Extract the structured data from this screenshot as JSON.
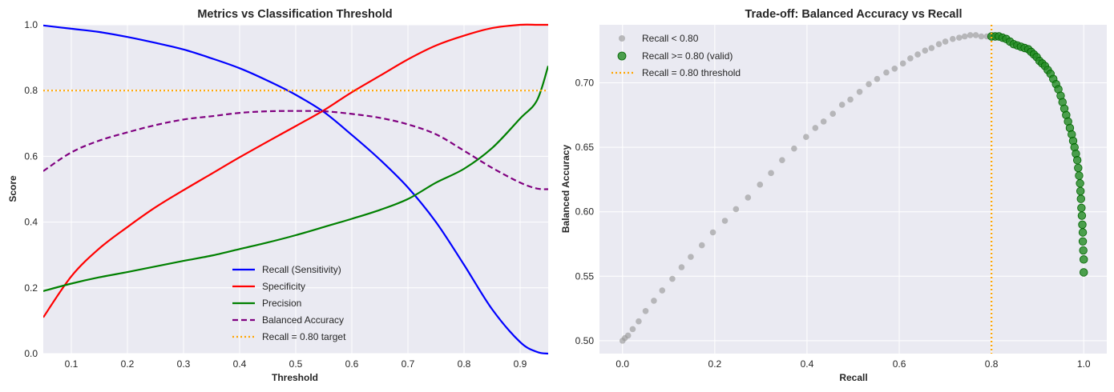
{
  "colors": {
    "recall": "#0000ff",
    "specificity": "#ff0000",
    "precision": "#008000",
    "balanced_accuracy": "#800080",
    "target": "#ffa500",
    "gray_points": "#999999",
    "green_points": "#228b22",
    "plot_background": "#eaeaf2",
    "grid": "#ffffff"
  },
  "chart_data": [
    {
      "type": "line",
      "title": "Metrics vs Classification Threshold",
      "xlabel": "Threshold",
      "ylabel": "Score",
      "xlim": [
        0.05,
        0.95
      ],
      "ylim": [
        0.0,
        1.0
      ],
      "xticks": [
        "0.1",
        "0.2",
        "0.3",
        "0.4",
        "0.5",
        "0.6",
        "0.7",
        "0.8",
        "0.9"
      ],
      "yticks": [
        "0.0",
        "0.2",
        "0.4",
        "0.6",
        "0.8",
        "1.0"
      ],
      "grid": true,
      "legend": "lower center",
      "x": [
        0.05,
        0.1,
        0.15,
        0.2,
        0.25,
        0.3,
        0.35,
        0.4,
        0.45,
        0.5,
        0.55,
        0.6,
        0.65,
        0.7,
        0.75,
        0.8,
        0.85,
        0.9,
        0.93,
        0.95
      ],
      "series": [
        {
          "name": "Recall (Sensitivity)",
          "style": "solid",
          "values": [
            0.998,
            0.988,
            0.978,
            0.963,
            0.945,
            0.925,
            0.898,
            0.868,
            0.83,
            0.787,
            0.735,
            0.665,
            0.59,
            0.505,
            0.4,
            0.27,
            0.135,
            0.035,
            0.005,
            0.0
          ]
        },
        {
          "name": "Specificity",
          "style": "solid",
          "values": [
            0.11,
            0.235,
            0.32,
            0.385,
            0.445,
            0.497,
            0.547,
            0.597,
            0.645,
            0.692,
            0.74,
            0.795,
            0.845,
            0.895,
            0.937,
            0.967,
            0.99,
            1.0,
            1.0,
            1.0
          ]
        },
        {
          "name": "Precision",
          "style": "solid",
          "values": [
            0.19,
            0.213,
            0.232,
            0.248,
            0.265,
            0.282,
            0.298,
            0.318,
            0.338,
            0.36,
            0.385,
            0.41,
            0.437,
            0.47,
            0.52,
            0.562,
            0.625,
            0.715,
            0.77,
            0.875
          ]
        },
        {
          "name": "Balanced Accuracy",
          "style": "dashed",
          "values": [
            0.555,
            0.612,
            0.648,
            0.673,
            0.695,
            0.712,
            0.722,
            0.732,
            0.737,
            0.738,
            0.737,
            0.729,
            0.717,
            0.697,
            0.667,
            0.617,
            0.565,
            0.52,
            0.502,
            0.5
          ]
        },
        {
          "name": "Recall = 0.80 target",
          "style": "dotted",
          "values": [
            0.8,
            0.8,
            0.8,
            0.8,
            0.8,
            0.8,
            0.8,
            0.8,
            0.8,
            0.8,
            0.8,
            0.8,
            0.8,
            0.8,
            0.8,
            0.8,
            0.8,
            0.8,
            0.8,
            0.8
          ]
        }
      ]
    },
    {
      "type": "scatter",
      "title": "Trade-off: Balanced Accuracy vs Recall",
      "xlabel": "Recall",
      "ylabel": "Balanced Accuracy",
      "xlim": [
        -0.05,
        1.05
      ],
      "ylim": [
        0.49,
        0.745
      ],
      "xticks": [
        "0.0",
        "0.2",
        "0.4",
        "0.6",
        "0.8",
        "1.0"
      ],
      "yticks": [
        "0.50",
        "0.55",
        "0.60",
        "0.65",
        "0.70"
      ],
      "grid": true,
      "legend": "upper left",
      "series": [
        {
          "name": "Recall < 0.80",
          "points": [
            [
              0.0,
              0.5
            ],
            [
              0.005,
              0.502
            ],
            [
              0.012,
              0.504
            ],
            [
              0.022,
              0.509
            ],
            [
              0.035,
              0.515
            ],
            [
              0.05,
              0.523
            ],
            [
              0.068,
              0.531
            ],
            [
              0.086,
              0.539
            ],
            [
              0.108,
              0.548
            ],
            [
              0.128,
              0.557
            ],
            [
              0.148,
              0.565
            ],
            [
              0.172,
              0.574
            ],
            [
              0.196,
              0.584
            ],
            [
              0.222,
              0.593
            ],
            [
              0.246,
              0.602
            ],
            [
              0.272,
              0.611
            ],
            [
              0.298,
              0.621
            ],
            [
              0.322,
              0.63
            ],
            [
              0.346,
              0.64
            ],
            [
              0.372,
              0.649
            ],
            [
              0.398,
              0.658
            ],
            [
              0.418,
              0.665
            ],
            [
              0.436,
              0.67
            ],
            [
              0.456,
              0.676
            ],
            [
              0.476,
              0.683
            ],
            [
              0.494,
              0.687
            ],
            [
              0.514,
              0.693
            ],
            [
              0.534,
              0.699
            ],
            [
              0.552,
              0.703
            ],
            [
              0.572,
              0.708
            ],
            [
              0.59,
              0.711
            ],
            [
              0.608,
              0.715
            ],
            [
              0.624,
              0.719
            ],
            [
              0.64,
              0.722
            ],
            [
              0.656,
              0.725
            ],
            [
              0.67,
              0.727
            ],
            [
              0.686,
              0.73
            ],
            [
              0.7,
              0.732
            ],
            [
              0.716,
              0.734
            ],
            [
              0.73,
              0.735
            ],
            [
              0.742,
              0.736
            ],
            [
              0.754,
              0.737
            ],
            [
              0.766,
              0.737
            ],
            [
              0.778,
              0.736
            ],
            [
              0.79,
              0.736
            ],
            [
              0.797,
              0.736
            ]
          ]
        },
        {
          "name": "Recall >= 0.80 (valid)",
          "points": [
            [
              0.8,
              0.736
            ],
            [
              0.808,
              0.736
            ],
            [
              0.816,
              0.736
            ],
            [
              0.824,
              0.735
            ],
            [
              0.832,
              0.734
            ],
            [
              0.84,
              0.732
            ],
            [
              0.848,
              0.73
            ],
            [
              0.856,
              0.729
            ],
            [
              0.864,
              0.728
            ],
            [
              0.872,
              0.727
            ],
            [
              0.88,
              0.726
            ],
            [
              0.886,
              0.724
            ],
            [
              0.892,
              0.722
            ],
            [
              0.898,
              0.72
            ],
            [
              0.904,
              0.717
            ],
            [
              0.91,
              0.715
            ],
            [
              0.916,
              0.713
            ],
            [
              0.922,
              0.71
            ],
            [
              0.928,
              0.707
            ],
            [
              0.934,
              0.703
            ],
            [
              0.94,
              0.699
            ],
            [
              0.945,
              0.695
            ],
            [
              0.95,
              0.69
            ],
            [
              0.954,
              0.685
            ],
            [
              0.958,
              0.68
            ],
            [
              0.962,
              0.675
            ],
            [
              0.966,
              0.67
            ],
            [
              0.97,
              0.665
            ],
            [
              0.974,
              0.66
            ],
            [
              0.977,
              0.655
            ],
            [
              0.98,
              0.65
            ],
            [
              0.983,
              0.645
            ],
            [
              0.986,
              0.64
            ],
            [
              0.988,
              0.634
            ],
            [
              0.99,
              0.628
            ],
            [
              0.992,
              0.622
            ],
            [
              0.993,
              0.616
            ],
            [
              0.994,
              0.61
            ],
            [
              0.995,
              0.603
            ],
            [
              0.996,
              0.597
            ],
            [
              0.997,
              0.59
            ],
            [
              0.998,
              0.584
            ],
            [
              0.998,
              0.577
            ],
            [
              0.999,
              0.57
            ],
            [
              1.0,
              0.563
            ],
            [
              1.0,
              0.553
            ]
          ]
        },
        {
          "name": "Recall = 0.80 threshold",
          "style": "dotted-vertical",
          "x": 0.8
        }
      ]
    }
  ]
}
